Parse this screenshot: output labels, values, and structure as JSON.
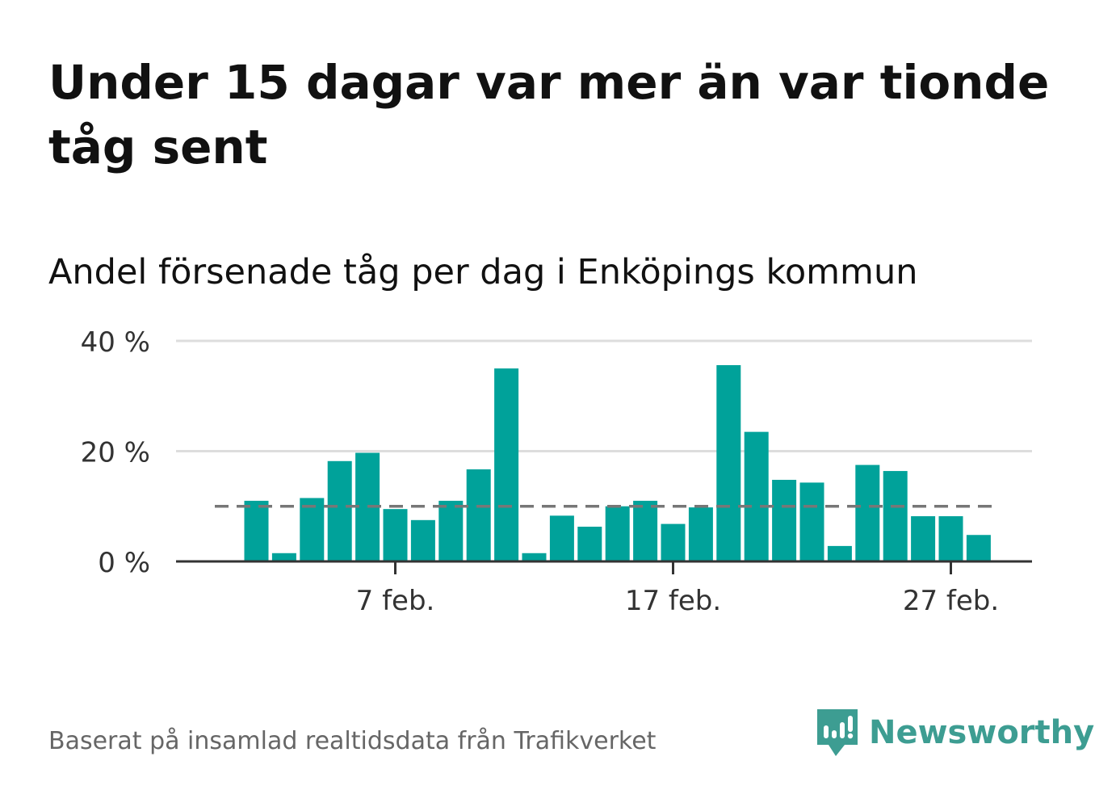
{
  "title": "Under 15 dagar var mer än var tionde tåg sent",
  "subtitle": "Andel försenade tåg per dag i Enköpings kommun",
  "source": "Baserat på insamlad realtidsdata från Trafikverket",
  "brand": {
    "name": "Newsworthy",
    "icon": "newsworthy-logo-icon",
    "color": "#3d9d92"
  },
  "colors": {
    "bar": "#00a29a",
    "reference": "#777777",
    "grid": "#dddddd",
    "axis": "#333333"
  },
  "chart_data": {
    "type": "bar",
    "categories": [
      "2 feb.",
      "3 feb.",
      "4 feb.",
      "5 feb.",
      "6 feb.",
      "7 feb.",
      "8 feb.",
      "9 feb.",
      "10 feb.",
      "11 feb.",
      "12 feb.",
      "13 feb.",
      "14 feb.",
      "15 feb.",
      "16 feb.",
      "17 feb.",
      "18 feb.",
      "19 feb.",
      "20 feb.",
      "21 feb.",
      "22 feb.",
      "23 feb.",
      "24 feb.",
      "25 feb.",
      "26 feb.",
      "27 feb.",
      "28 feb."
    ],
    "values": [
      11,
      1.5,
      11.5,
      18.2,
      19.7,
      9.5,
      7.5,
      11,
      16.7,
      35,
      1.5,
      8.3,
      6.3,
      10,
      11,
      6.8,
      9.8,
      35.6,
      23.5,
      14.8,
      14.3,
      2.8,
      17.5,
      16.4,
      8.2,
      8.2,
      4.8
    ],
    "reference_line": 10,
    "ylim": [
      0,
      40
    ],
    "yticks": [
      0,
      20,
      40
    ],
    "ytick_labels": [
      "0 %",
      "20 %",
      "40 %"
    ],
    "xtick_labels": [
      "7 feb.",
      "17 feb.",
      "27 feb."
    ],
    "xtick_categories": [
      "7 feb.",
      "17 feb.",
      "27 feb."
    ],
    "grid": true,
    "legend": "none"
  }
}
